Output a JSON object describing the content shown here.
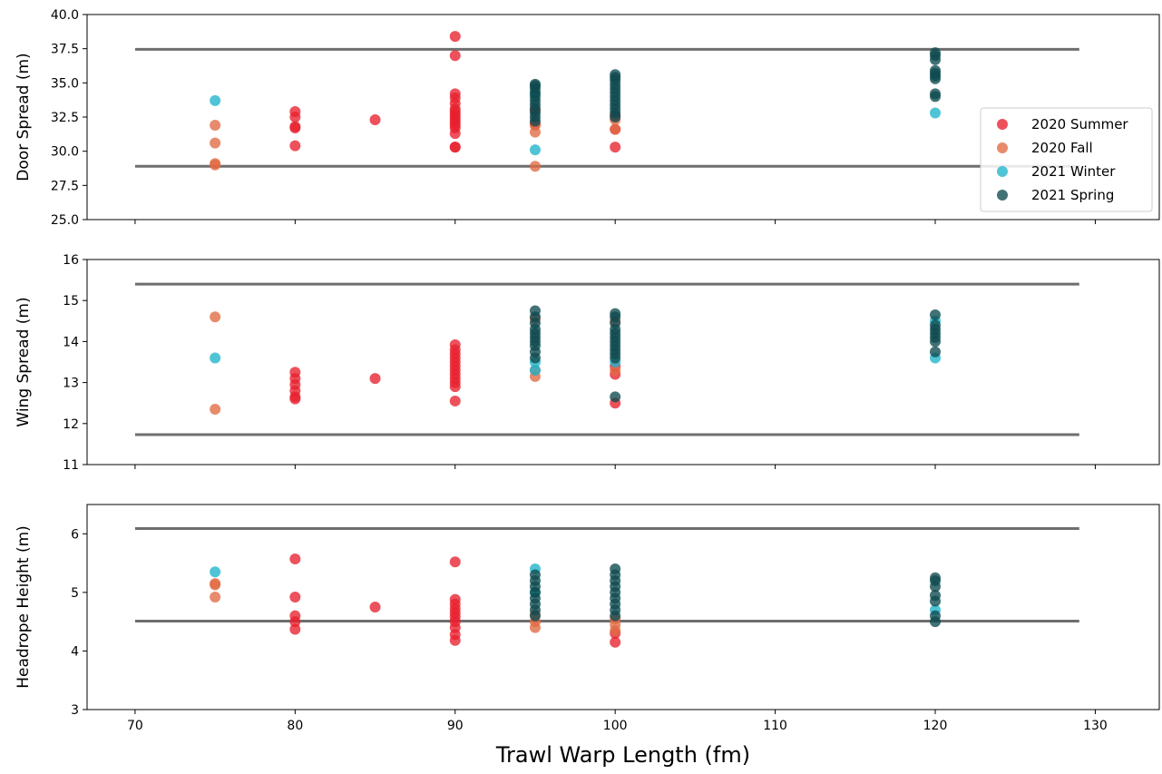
{
  "chart_data": {
    "type": "scatter",
    "xlabel": "Trawl Warp Length (fm)",
    "xlim": [
      67,
      134
    ],
    "x_ticks": [
      "70",
      "80",
      "90",
      "100",
      "110",
      "120",
      "130"
    ],
    "series_styles": [
      {
        "name": "2020 Summer",
        "color": "#e8202e"
      },
      {
        "name": "2020 Fall",
        "color": "#e06a42"
      },
      {
        "name": "2021 Winter",
        "color": "#1fb3cc"
      },
      {
        "name": "2021 Spring",
        "color": "#0e4a4f"
      }
    ],
    "legend_placement": "right",
    "panels": [
      {
        "ylabel": "Door Spread (m)",
        "ylim": [
          25.0,
          40.0
        ],
        "y_ticks": [
          "25.0",
          "27.5",
          "30.0",
          "32.5",
          "35.0",
          "37.5",
          "40.0"
        ],
        "reference_lines": [
          {
            "y": 37.45,
            "x_start": 70,
            "x_end": 129
          },
          {
            "y": 28.9,
            "x_start": 70,
            "x_end": 129
          }
        ],
        "series": [
          {
            "name": "2020 Summer",
            "points": [
              [
                80,
                30.4
              ],
              [
                80,
                31.7
              ],
              [
                80,
                31.8
              ],
              [
                80,
                32.5
              ],
              [
                80,
                32.9
              ],
              [
                85,
                32.3
              ],
              [
                90,
                30.3
              ],
              [
                90,
                30.3
              ],
              [
                90,
                31.3
              ],
              [
                90,
                31.7
              ],
              [
                90,
                31.9
              ],
              [
                90,
                32.1
              ],
              [
                90,
                32.3
              ],
              [
                90,
                32.5
              ],
              [
                90,
                32.7
              ],
              [
                90,
                32.9
              ],
              [
                90,
                33.1
              ],
              [
                90,
                33.5
              ],
              [
                90,
                33.9
              ],
              [
                90,
                34.2
              ],
              [
                90,
                37.0
              ],
              [
                90,
                38.4
              ],
              [
                95,
                32.0
              ],
              [
                95,
                33.0
              ],
              [
                100,
                30.3
              ],
              [
                100,
                31.6
              ],
              [
                100,
                32.6
              ]
            ]
          },
          {
            "name": "2020 Fall",
            "points": [
              [
                75,
                29.0
              ],
              [
                75,
                29.1
              ],
              [
                75,
                30.6
              ],
              [
                75,
                31.9
              ],
              [
                95,
                28.9
              ],
              [
                95,
                31.4
              ],
              [
                95,
                31.9
              ],
              [
                100,
                31.6
              ],
              [
                100,
                32.3
              ]
            ]
          },
          {
            "name": "2021 Winter",
            "points": [
              [
                75,
                33.7
              ],
              [
                95,
                30.1
              ],
              [
                95,
                34.2
              ],
              [
                120,
                32.8
              ]
            ]
          },
          {
            "name": "2021 Spring",
            "points": [
              [
                95,
                32.2
              ],
              [
                95,
                32.5
              ],
              [
                95,
                32.8
              ],
              [
                95,
                33.1
              ],
              [
                95,
                33.4
              ],
              [
                95,
                33.7
              ],
              [
                95,
                34.0
              ],
              [
                95,
                34.3
              ],
              [
                95,
                34.6
              ],
              [
                95,
                34.8
              ],
              [
                95,
                34.9
              ],
              [
                100,
                32.5
              ],
              [
                100,
                32.8
              ],
              [
                100,
                33.1
              ],
              [
                100,
                33.4
              ],
              [
                100,
                33.7
              ],
              [
                100,
                34.0
              ],
              [
                100,
                34.3
              ],
              [
                100,
                34.6
              ],
              [
                100,
                34.9
              ],
              [
                100,
                35.2
              ],
              [
                100,
                35.4
              ],
              [
                100,
                35.6
              ],
              [
                120,
                34.0
              ],
              [
                120,
                34.2
              ],
              [
                120,
                35.3
              ],
              [
                120,
                35.5
              ],
              [
                120,
                35.7
              ],
              [
                120,
                35.9
              ],
              [
                120,
                36.7
              ],
              [
                120,
                37.0
              ],
              [
                120,
                37.2
              ]
            ]
          }
        ]
      },
      {
        "ylabel": "Wing Spread (m)",
        "ylim": [
          11,
          16
        ],
        "y_ticks": [
          "11",
          "12",
          "13",
          "14",
          "15",
          "16"
        ],
        "reference_lines": [
          {
            "y": 15.4,
            "x_start": 70,
            "x_end": 129
          },
          {
            "y": 11.73,
            "x_start": 70,
            "x_end": 129
          }
        ],
        "series": [
          {
            "name": "2020 Summer",
            "points": [
              [
                80,
                12.6
              ],
              [
                80,
                12.65
              ],
              [
                80,
                12.8
              ],
              [
                80,
                12.95
              ],
              [
                80,
                13.1
              ],
              [
                80,
                13.25
              ],
              [
                85,
                13.1
              ],
              [
                90,
                12.55
              ],
              [
                90,
                12.9
              ],
              [
                90,
                13.0
              ],
              [
                90,
                13.1
              ],
              [
                90,
                13.2
              ],
              [
                90,
                13.3
              ],
              [
                90,
                13.4
              ],
              [
                90,
                13.5
              ],
              [
                90,
                13.6
              ],
              [
                90,
                13.7
              ],
              [
                90,
                13.8
              ],
              [
                90,
                13.92
              ],
              [
                100,
                12.5
              ],
              [
                100,
                13.2
              ],
              [
                100,
                13.4
              ]
            ]
          },
          {
            "name": "2020 Fall",
            "points": [
              [
                75,
                12.35
              ],
              [
                75,
                14.6
              ],
              [
                95,
                13.15
              ],
              [
                95,
                13.3
              ],
              [
                95,
                14.55
              ],
              [
                100,
                13.3
              ],
              [
                100,
                14.5
              ]
            ]
          },
          {
            "name": "2021 Winter",
            "points": [
              [
                75,
                13.6
              ],
              [
                95,
                13.3
              ],
              [
                95,
                13.5
              ],
              [
                100,
                13.5
              ],
              [
                120,
                13.6
              ],
              [
                120,
                14.5
              ]
            ]
          },
          {
            "name": "2021 Spring",
            "points": [
              [
                95,
                13.6
              ],
              [
                95,
                13.75
              ],
              [
                95,
                13.9
              ],
              [
                95,
                14.0
              ],
              [
                95,
                14.1
              ],
              [
                95,
                14.2
              ],
              [
                95,
                14.3
              ],
              [
                95,
                14.45
              ],
              [
                95,
                14.6
              ],
              [
                95,
                14.75
              ],
              [
                100,
                12.65
              ],
              [
                100,
                13.6
              ],
              [
                100,
                13.7
              ],
              [
                100,
                13.8
              ],
              [
                100,
                13.9
              ],
              [
                100,
                14.0
              ],
              [
                100,
                14.1
              ],
              [
                100,
                14.2
              ],
              [
                100,
                14.3
              ],
              [
                100,
                14.45
              ],
              [
                100,
                14.6
              ],
              [
                100,
                14.68
              ],
              [
                120,
                13.75
              ],
              [
                120,
                14.0
              ],
              [
                120,
                14.1
              ],
              [
                120,
                14.2
              ],
              [
                120,
                14.3
              ],
              [
                120,
                14.4
              ],
              [
                120,
                14.65
              ]
            ]
          }
        ]
      },
      {
        "ylabel": "Headrope Height (m)",
        "ylim": [
          3,
          6.5
        ],
        "y_ticks": [
          "3",
          "4",
          "5",
          "6"
        ],
        "reference_lines": [
          {
            "y": 6.09,
            "x_start": 70,
            "x_end": 129
          },
          {
            "y": 4.51,
            "x_start": 70,
            "x_end": 129
          }
        ],
        "series": [
          {
            "name": "2020 Summer",
            "points": [
              [
                80,
                4.37
              ],
              [
                80,
                4.5
              ],
              [
                80,
                4.6
              ],
              [
                80,
                4.92
              ],
              [
                80,
                5.57
              ],
              [
                85,
                4.75
              ],
              [
                90,
                4.18
              ],
              [
                90,
                4.28
              ],
              [
                90,
                4.4
              ],
              [
                90,
                4.5
              ],
              [
                90,
                4.58
              ],
              [
                90,
                4.65
              ],
              [
                90,
                4.72
              ],
              [
                90,
                4.8
              ],
              [
                90,
                4.88
              ],
              [
                90,
                5.52
              ],
              [
                100,
                4.15
              ],
              [
                100,
                4.3
              ]
            ]
          },
          {
            "name": "2020 Fall",
            "points": [
              [
                75,
                4.92
              ],
              [
                75,
                5.13
              ],
              [
                75,
                5.15
              ],
              [
                95,
                4.4
              ],
              [
                95,
                4.5
              ],
              [
                95,
                4.62
              ],
              [
                100,
                4.35
              ],
              [
                100,
                4.45
              ],
              [
                100,
                4.55
              ]
            ]
          },
          {
            "name": "2021 Winter",
            "points": [
              [
                75,
                5.35
              ],
              [
                95,
                5.4
              ],
              [
                95,
                5.0
              ],
              [
                120,
                4.7
              ]
            ]
          },
          {
            "name": "2021 Spring",
            "points": [
              [
                95,
                4.6
              ],
              [
                95,
                4.7
              ],
              [
                95,
                4.8
              ],
              [
                95,
                4.9
              ],
              [
                95,
                5.0
              ],
              [
                95,
                5.1
              ],
              [
                95,
                5.2
              ],
              [
                95,
                5.3
              ],
              [
                100,
                4.6
              ],
              [
                100,
                4.7
              ],
              [
                100,
                4.8
              ],
              [
                100,
                4.9
              ],
              [
                100,
                5.0
              ],
              [
                100,
                5.1
              ],
              [
                100,
                5.2
              ],
              [
                100,
                5.3
              ],
              [
                100,
                5.4
              ],
              [
                120,
                4.5
              ],
              [
                120,
                4.6
              ],
              [
                120,
                4.85
              ],
              [
                120,
                4.95
              ],
              [
                120,
                5.1
              ],
              [
                120,
                5.2
              ],
              [
                120,
                5.25
              ]
            ]
          }
        ]
      }
    ]
  }
}
